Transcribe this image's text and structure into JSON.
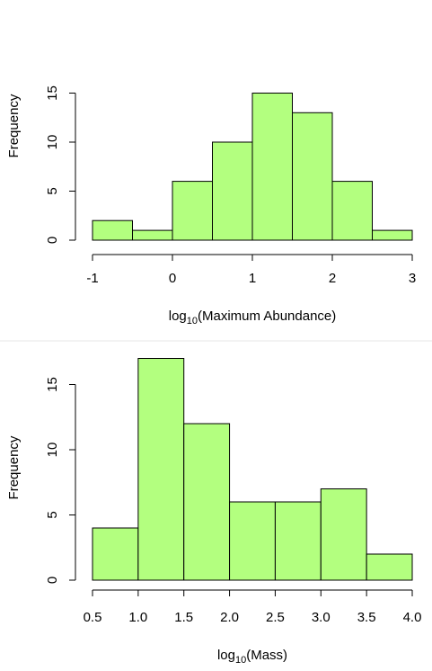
{
  "chart_data": [
    {
      "type": "bar",
      "subtype": "histogram",
      "xlabel_base": "log",
      "xlabel_sub": "10",
      "xlabel_rest": "(Maximum Abundance)",
      "ylabel": "Frequency",
      "bin_edges": [
        -1,
        -0.5,
        0,
        0.5,
        1,
        1.5,
        2,
        2.5,
        3
      ],
      "values": [
        2,
        1,
        6,
        10,
        15,
        13,
        6,
        1
      ],
      "xlim": [
        -1,
        3
      ],
      "ylim": [
        0,
        15
      ],
      "xticks": [
        -1,
        0,
        1,
        2,
        3
      ],
      "xtick_labels": [
        "-1",
        "0",
        "1",
        "2",
        "3"
      ],
      "yticks": [
        0,
        5,
        10,
        15
      ],
      "ytick_labels": [
        "0",
        "5",
        "10",
        "15"
      ],
      "bar_color": "#b3ff7f",
      "grid": false
    },
    {
      "type": "bar",
      "subtype": "histogram",
      "xlabel_base": "log",
      "xlabel_sub": "10",
      "xlabel_rest": "(Mass)",
      "ylabel": "Frequency",
      "bin_edges": [
        0.5,
        1.0,
        1.5,
        2.0,
        2.5,
        3.0,
        3.5,
        4.0
      ],
      "values": [
        4,
        17,
        12,
        6,
        6,
        7,
        2
      ],
      "xlim": [
        0.5,
        4.0
      ],
      "ylim": [
        0,
        17
      ],
      "xticks": [
        0.5,
        1.0,
        1.5,
        2.0,
        2.5,
        3.0,
        3.5,
        4.0
      ],
      "xtick_labels": [
        "0.5",
        "1.0",
        "1.5",
        "2.0",
        "2.5",
        "3.0",
        "3.5",
        "4.0"
      ],
      "yticks": [
        0,
        5,
        10,
        15
      ],
      "ytick_labels": [
        "0",
        "5",
        "10",
        "15"
      ],
      "bar_color": "#b3ff7f",
      "grid": false
    }
  ]
}
